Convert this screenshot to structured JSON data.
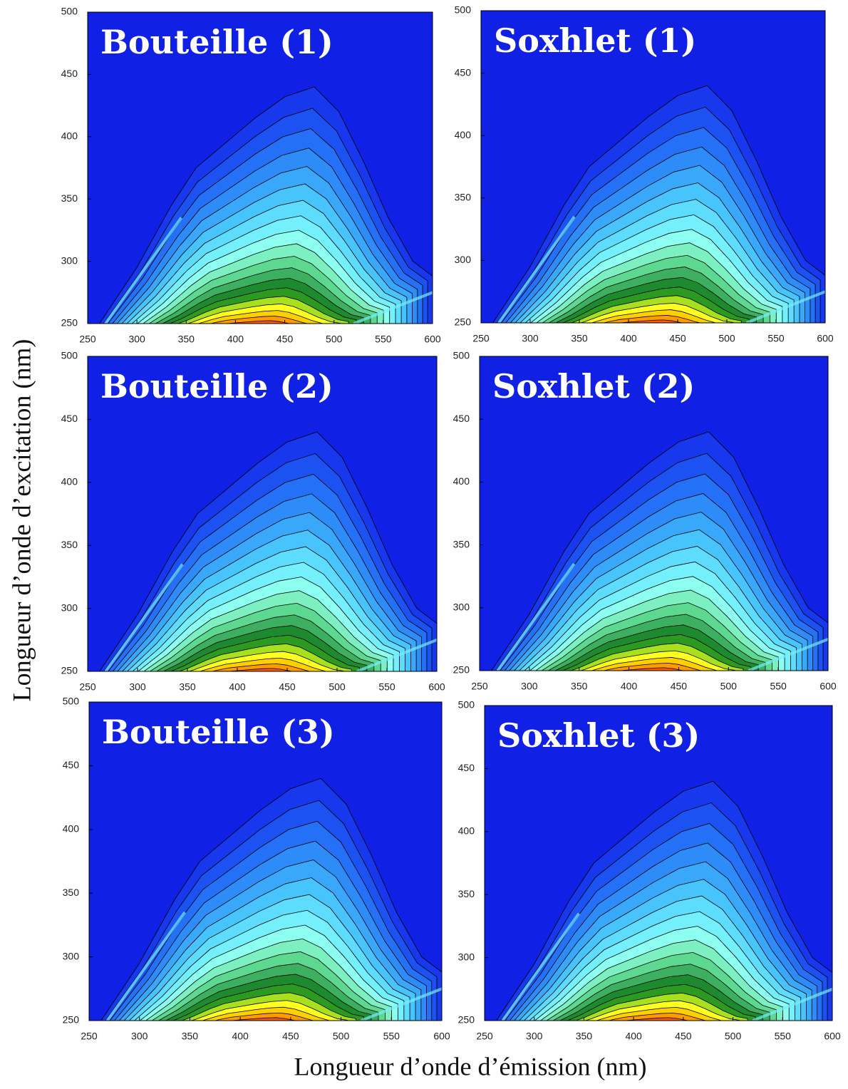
{
  "xlabel": "Longueur d’onde d’émission (nm)",
  "ylabel": "Longueur d’onde d’excitation (nm)",
  "chart_data": [
    {
      "type": "contour",
      "title": "Bouteille (1)",
      "xlim": [
        250,
        600
      ],
      "ylim": [
        250,
        500
      ],
      "xticks": [
        250,
        300,
        350,
        400,
        450,
        500,
        550,
        600
      ],
      "yticks": [
        250,
        300,
        350,
        400,
        450,
        500
      ]
    },
    {
      "type": "contour",
      "title": "Soxhlet (1)",
      "xlim": [
        250,
        600
      ],
      "ylim": [
        250,
        500
      ],
      "xticks": [
        250,
        300,
        350,
        400,
        450,
        500,
        550,
        600
      ],
      "yticks": [
        250,
        300,
        350,
        400,
        450,
        500
      ]
    },
    {
      "type": "contour",
      "title": "Bouteille (2)",
      "xlim": [
        250,
        600
      ],
      "ylim": [
        250,
        500
      ],
      "xticks": [
        250,
        300,
        350,
        400,
        450,
        500,
        550,
        600
      ],
      "yticks": [
        250,
        300,
        350,
        400,
        450,
        500
      ]
    },
    {
      "type": "contour",
      "title": "Soxhlet (2)",
      "xlim": [
        250,
        600
      ],
      "ylim": [
        250,
        500
      ],
      "xticks": [
        250,
        300,
        350,
        400,
        450,
        500,
        550,
        600
      ],
      "yticks": [
        250,
        300,
        350,
        400,
        450,
        500
      ]
    },
    {
      "type": "contour",
      "title": "Bouteille (3)",
      "xlim": [
        250,
        600
      ],
      "ylim": [
        250,
        500
      ],
      "xticks": [
        250,
        300,
        350,
        400,
        450,
        500,
        550,
        600
      ],
      "yticks": [
        250,
        300,
        350,
        400,
        450,
        500
      ]
    },
    {
      "type": "contour",
      "title": "Soxhlet (3)",
      "xlim": [
        250,
        600
      ],
      "ylim": [
        250,
        500
      ],
      "xticks": [
        250,
        300,
        350,
        400,
        450,
        500,
        550,
        600
      ],
      "yticks": [
        250,
        300,
        350,
        400,
        450,
        500
      ]
    }
  ]
}
